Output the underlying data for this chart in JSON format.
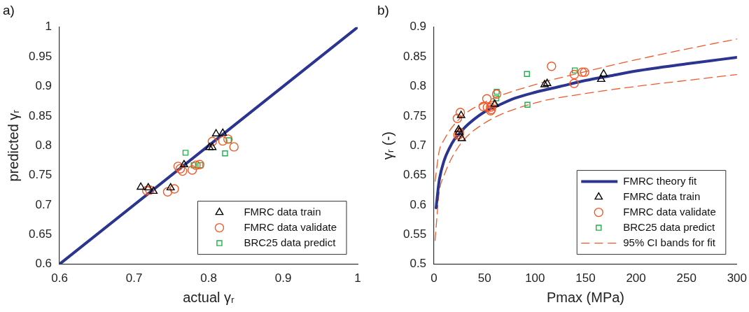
{
  "chart_data": [
    {
      "type": "scatter",
      "title": "a)",
      "xlabel": "actual γᵣ",
      "ylabel": "predicted γᵣ",
      "xlim": [
        0.6,
        1
      ],
      "ylim": [
        0.6,
        1
      ],
      "xticks": [
        0.6,
        0.7,
        0.8,
        0.9,
        1
      ],
      "yticks": [
        0.6,
        0.65,
        0.7,
        0.75,
        0.8,
        0.85,
        0.9,
        0.95,
        1
      ],
      "grid": false,
      "legend": "bottom right",
      "series": [
        {
          "type": "line",
          "color": "#2b3590",
          "marker": "none",
          "line_style": "solid",
          "x": [
            0.6,
            1
          ],
          "values": [
            0.6,
            1
          ]
        },
        {
          "name": "FMRC data train",
          "color": "#000000",
          "marker": "triangle",
          "x": [
            0.709,
            0.719,
            0.726,
            0.749,
            0.767,
            0.801,
            0.805,
            0.81,
            0.819
          ],
          "values": [
            0.73,
            0.729,
            0.723,
            0.729,
            0.768,
            0.797,
            0.797,
            0.82,
            0.821
          ]
        },
        {
          "name": "FMRC data validate",
          "color": "#f05a28",
          "marker": "circle",
          "x": [
            0.717,
            0.721,
            0.745,
            0.754,
            0.759,
            0.762,
            0.765,
            0.778,
            0.783,
            0.788,
            0.805,
            0.819,
            0.826,
            0.834
          ],
          "values": [
            0.724,
            0.725,
            0.722,
            0.727,
            0.765,
            0.761,
            0.757,
            0.759,
            0.767,
            0.768,
            0.807,
            0.808,
            0.811,
            0.798
          ]
        },
        {
          "name": "BRC25 data predict",
          "color": "#1db34a",
          "marker": "square",
          "x": [
            0.769,
            0.78,
            0.789,
            0.822,
            0.827
          ],
          "values": [
            0.788,
            0.767,
            0.767,
            0.787,
            0.809
          ]
        }
      ]
    },
    {
      "type": "scatter",
      "title": "b)",
      "xlabel": "Pmax (MPa)",
      "ylabel": "γᵣ (-)",
      "xlim": [
        0,
        300
      ],
      "ylim": [
        0.5,
        0.9
      ],
      "xticks": [
        0,
        50,
        100,
        150,
        200,
        250,
        300
      ],
      "yticks": [
        0.5,
        0.55,
        0.6,
        0.65,
        0.7,
        0.75,
        0.8,
        0.85,
        0.9
      ],
      "grid": false,
      "legend": "bottom right",
      "series": [
        {
          "name": "FMRC theory fit",
          "type": "line",
          "color": "#2b3590",
          "marker": "none",
          "line_style": "solid",
          "x": [
            2,
            5,
            10,
            15,
            20,
            25,
            30,
            40,
            50,
            60,
            80,
            100,
            125,
            150,
            175,
            200,
            250,
            300
          ],
          "values": [
            0.595,
            0.64,
            0.675,
            0.695,
            0.71,
            0.72,
            0.73,
            0.745,
            0.757,
            0.765,
            0.78,
            0.79,
            0.8,
            0.81,
            0.818,
            0.826,
            0.838,
            0.849
          ]
        },
        {
          "name": "FMRC data train",
          "color": "#000000",
          "marker": "triangle",
          "x": [
            26.8,
            24.3,
            25,
            27.5,
            60.1,
            109.5,
            112,
            165.5,
            167.9
          ],
          "values": [
            0.751,
            0.727,
            0.723,
            0.712,
            0.77,
            0.803,
            0.805,
            0.812,
            0.821
          ]
        },
        {
          "name": "FMRC data validate",
          "color": "#f05a28",
          "marker": "circle",
          "x": [
            23.1,
            26,
            25,
            25,
            23.6,
            48.7,
            52.3,
            52.8,
            56,
            56.7,
            56,
            57.7,
            62,
            116.3,
            138.9,
            138.7,
            146.7,
            149.1
          ],
          "values": [
            0.746,
            0.756,
            0.723,
            0.719,
            0.718,
            0.766,
            0.779,
            0.765,
            0.765,
            0.761,
            0.759,
            0.768,
            0.787,
            0.834,
            0.82,
            0.805,
            0.824,
            0.824
          ]
        },
        {
          "name": "BRC25 data predict",
          "color": "#1db34a",
          "marker": "square",
          "x": [
            61.6,
            62,
            92,
            92.5,
            139.4
          ],
          "values": [
            0.78,
            0.791,
            0.821,
            0.769,
            0.827
          ]
        },
        {
          "name": "95% CI bands for fit",
          "type": "line",
          "color": "#f05a28",
          "marker": "none",
          "line_style": "dashed",
          "x": [
            1,
            5,
            10,
            25,
            50,
            100,
            150,
            200,
            250,
            300
          ],
          "values": [
            0.64,
            0.69,
            0.71,
            0.745,
            0.773,
            0.803,
            0.825,
            0.845,
            0.863,
            0.88
          ]
        },
        {
          "type": "line",
          "color": "#f05a28",
          "marker": "none",
          "line_style": "dashed",
          "x": [
            1,
            5,
            10,
            25,
            50,
            100,
            150,
            200,
            250,
            300
          ],
          "values": [
            0.54,
            0.62,
            0.65,
            0.7,
            0.738,
            0.772,
            0.788,
            0.8,
            0.81,
            0.82
          ]
        }
      ]
    }
  ]
}
